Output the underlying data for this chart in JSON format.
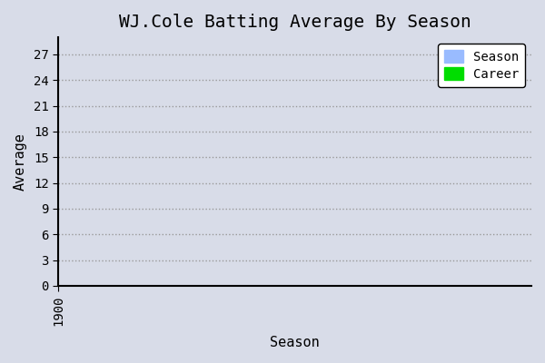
{
  "title": "WJ.Cole Batting Average By Season",
  "xlabel": "Season",
  "ylabel": "Average",
  "background_color": "#d8dce8",
  "plot_bg_color": "#d8dce8",
  "grid_color": "#999999",
  "yticks": [
    0,
    3,
    6,
    9,
    12,
    15,
    18,
    21,
    24,
    27
  ],
  "ylim": [
    0,
    29
  ],
  "xlim": [
    1900,
    1930
  ],
  "xtick_values": [
    1900
  ],
  "xtick_labels": [
    "1900"
  ],
  "legend_entries": [
    {
      "label": "Season",
      "color": "#99bbff"
    },
    {
      "label": "Career",
      "color": "#00dd00"
    }
  ],
  "title_fontsize": 14,
  "axis_label_fontsize": 11,
  "tick_fontsize": 10,
  "legend_fontsize": 10,
  "spine_color": "#000000"
}
